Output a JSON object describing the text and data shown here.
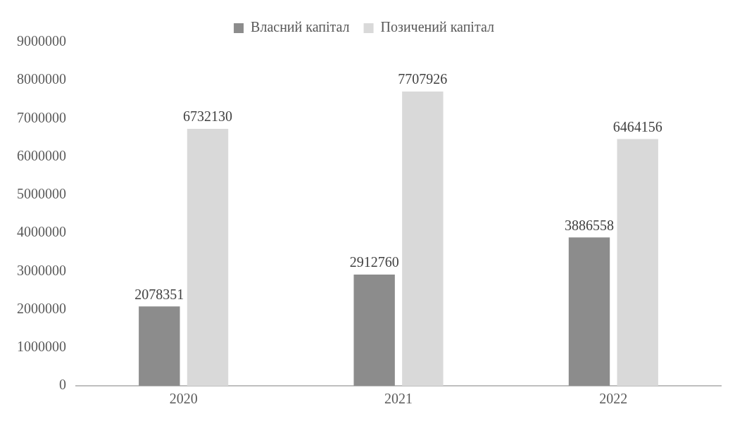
{
  "chart_data": {
    "type": "bar",
    "categories": [
      "2020",
      "2021",
      "2022"
    ],
    "series": [
      {
        "name": "Власний капітал",
        "color": "#8c8c8c",
        "values": [
          2078351,
          2912760,
          3886558
        ]
      },
      {
        "name": "Позичений капітал",
        "color": "#d9d9d9",
        "values": [
          6732130,
          7707926,
          6464156
        ]
      }
    ],
    "ylim": [
      0,
      9000000
    ],
    "yticks": [
      0,
      1000000,
      2000000,
      3000000,
      4000000,
      5000000,
      6000000,
      7000000,
      8000000,
      9000000
    ],
    "grid": false,
    "legend": "top",
    "data_labels": true
  }
}
